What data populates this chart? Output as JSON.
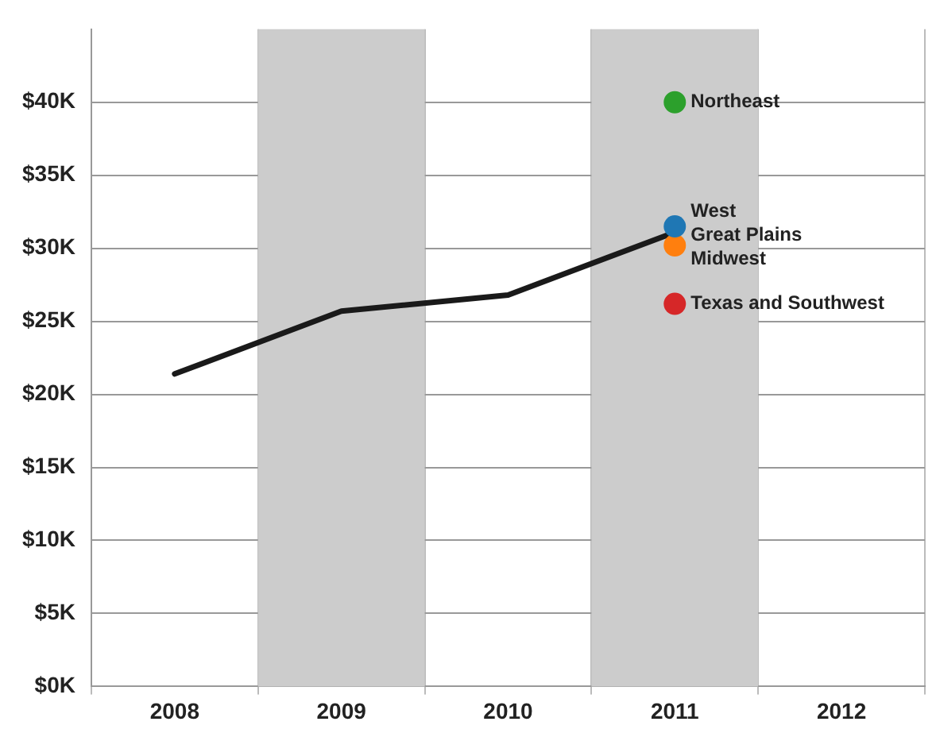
{
  "chart_data": {
    "type": "line",
    "categories": [
      "2008",
      "2009",
      "2010",
      "2011",
      "2012"
    ],
    "series": [
      {
        "color": "#1a1a1a",
        "marker": "none",
        "line_style": "solid",
        "values": [
          21.4,
          25.7,
          26.8,
          31.1,
          null
        ]
      },
      {
        "type": "scatter",
        "name": "Northeast",
        "color": "#2ca02c",
        "marker": "circle",
        "values": [
          null,
          null,
          null,
          40,
          null
        ]
      },
      {
        "type": "scatter",
        "name": "West",
        "color": "#1f77b4",
        "marker": "circle",
        "values": [
          null,
          null,
          null,
          31.5,
          null
        ]
      },
      {
        "type": "scatter",
        "name": "Midwest",
        "color": "#ff7f0e",
        "marker": "circle",
        "values": [
          null,
          null,
          null,
          30.2,
          null
        ]
      },
      {
        "type": "scatter",
        "name": "Texas and Southwest",
        "color": "#d62728",
        "marker": "circle",
        "values": [
          null,
          null,
          null,
          26.2,
          null
        ]
      }
    ],
    "annotations": [
      {
        "text": "Great Plains",
        "x": "2011",
        "y": 31
      }
    ],
    "ylim": [
      0,
      45
    ],
    "yticks": [
      {
        "value": 0,
        "label": "$0K"
      },
      {
        "value": 5,
        "label": "$5K"
      },
      {
        "value": 10,
        "label": "$10K"
      },
      {
        "value": 15,
        "label": "$15K"
      },
      {
        "value": 20,
        "label": "$20K"
      },
      {
        "value": 25,
        "label": "$25K"
      },
      {
        "value": 30,
        "label": "$30K"
      },
      {
        "value": 35,
        "label": "$35K"
      },
      {
        "value": 40,
        "label": "$40K"
      }
    ],
    "bands": [
      {
        "axis": "x",
        "from": "2009",
        "to": "2009",
        "color": "#cccccc"
      },
      {
        "axis": "x",
        "from": "2011",
        "to": "2011",
        "color": "#cccccc"
      }
    ],
    "grid": true,
    "legend": false
  }
}
